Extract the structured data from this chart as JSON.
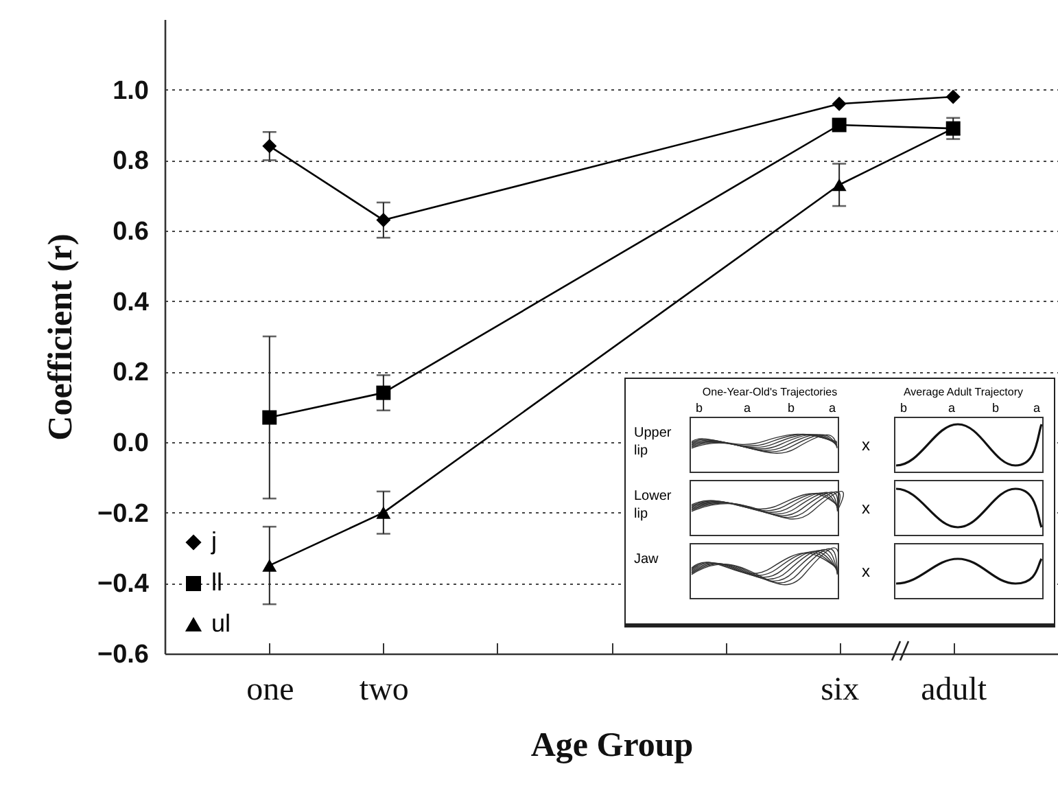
{
  "chart_data": {
    "type": "line",
    "xlabel": "Age Group",
    "ylabel": "Coefficient (r)",
    "categories": [
      "one",
      "two",
      null,
      null,
      null,
      "six",
      "adult"
    ],
    "series": [
      {
        "name": "j",
        "color": "#000000",
        "marker": "diamond",
        "values": [
          0.84,
          0.63,
          null,
          null,
          null,
          0.96,
          0.98
        ],
        "errors": [
          0.04,
          0.05,
          null,
          null,
          null,
          null,
          null
        ]
      },
      {
        "name": "ll",
        "color": "#000000",
        "marker": "square",
        "values": [
          0.07,
          0.14,
          null,
          null,
          null,
          0.9,
          0.89
        ],
        "errors": [
          0.23,
          0.05,
          null,
          null,
          null,
          null,
          0.03
        ]
      },
      {
        "name": "ul",
        "color": "#000000",
        "marker": "triangle",
        "values": [
          -0.35,
          -0.2,
          null,
          null,
          null,
          0.73,
          0.89
        ],
        "errors": [
          0.11,
          0.06,
          null,
          null,
          null,
          0.06,
          null
        ]
      }
    ],
    "ylim": [
      -0.6,
      1.2
    ],
    "yticks": [
      -0.6,
      -0.4,
      -0.2,
      {
        "value": 0,
        "label": "0.0"
      },
      0.2,
      0.4,
      0.6,
      0.8,
      {
        "value": 1,
        "label": "1.0"
      }
    ],
    "grid": "y",
    "legend": "bottom left",
    "line_style": "solid",
    "annotations": [
      "One-Year-Old's Trajectories",
      "Average Adult Trajectory",
      "Upper lip",
      "Lower lip",
      "Jaw",
      "b",
      "a",
      "x"
    ]
  }
}
